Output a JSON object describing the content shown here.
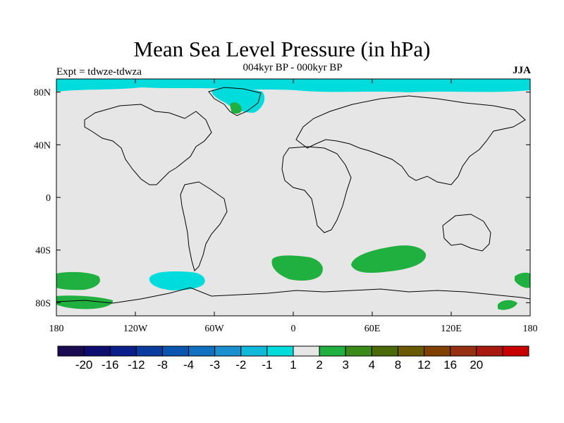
{
  "map": {
    "title": "Mean Sea Level Pressure (in hPa)",
    "subtitle": "004kyr BP - 000kyr BP",
    "left_string": "Expt = tdwze-tdwza",
    "right_string": "JJA",
    "background_color": "#e6e6e6",
    "coastline_color": "#000000",
    "lon_ticks": [
      {
        "value": -180,
        "label": "180"
      },
      {
        "value": -120,
        "label": "120W"
      },
      {
        "value": -60,
        "label": "60W"
      },
      {
        "value": 0,
        "label": "0"
      },
      {
        "value": 60,
        "label": "60E"
      },
      {
        "value": 120,
        "label": "120E"
      },
      {
        "value": 180,
        "label": "180"
      }
    ],
    "lat_ticks": [
      {
        "value": 80,
        "label": "80N"
      },
      {
        "value": 40,
        "label": "40N"
      },
      {
        "value": 0,
        "label": "0"
      },
      {
        "value": -40,
        "label": "40S"
      },
      {
        "value": -80,
        "label": "80S"
      }
    ],
    "lat_range": [
      -90,
      90
    ],
    "lon_range": [
      -180,
      180
    ]
  },
  "colorbar": {
    "colors": [
      "#1a0a52",
      "#0d0d70",
      "#0a1e8c",
      "#0a3ca0",
      "#0a55b0",
      "#1270c0",
      "#1a90d0",
      "#10b8da",
      "#00dcdc",
      "#e6e6e6",
      "#20b040",
      "#3a8a1a",
      "#4a6a0a",
      "#6a5a00",
      "#804000",
      "#963010",
      "#a81a10",
      "#c80000"
    ],
    "labels": [
      "-20",
      "-16",
      "-12",
      "-8",
      "-4",
      "-3",
      "-2",
      "-1",
      "1",
      "2",
      "3",
      "4",
      "8",
      "12",
      "16",
      "20"
    ]
  },
  "anomalies": [
    {
      "region": "arctic-north-band",
      "level": "-2",
      "color": "#00dcdc"
    },
    {
      "region": "greenland",
      "level": "-2",
      "color": "#00dcdc"
    },
    {
      "region": "greenland-dipole",
      "level": "2",
      "color": "#20b040"
    },
    {
      "region": "south-pacific-low",
      "level": "-2",
      "color": "#00dcdc"
    },
    {
      "region": "south-pacific-high",
      "level": "1",
      "color": "#20b040"
    },
    {
      "region": "south-atlantic-high",
      "level": "1",
      "color": "#20b040"
    },
    {
      "region": "south-indian-high",
      "level": "1",
      "color": "#20b040"
    },
    {
      "region": "antarctic-coastal-high",
      "level": "1",
      "color": "#20b040"
    }
  ]
}
